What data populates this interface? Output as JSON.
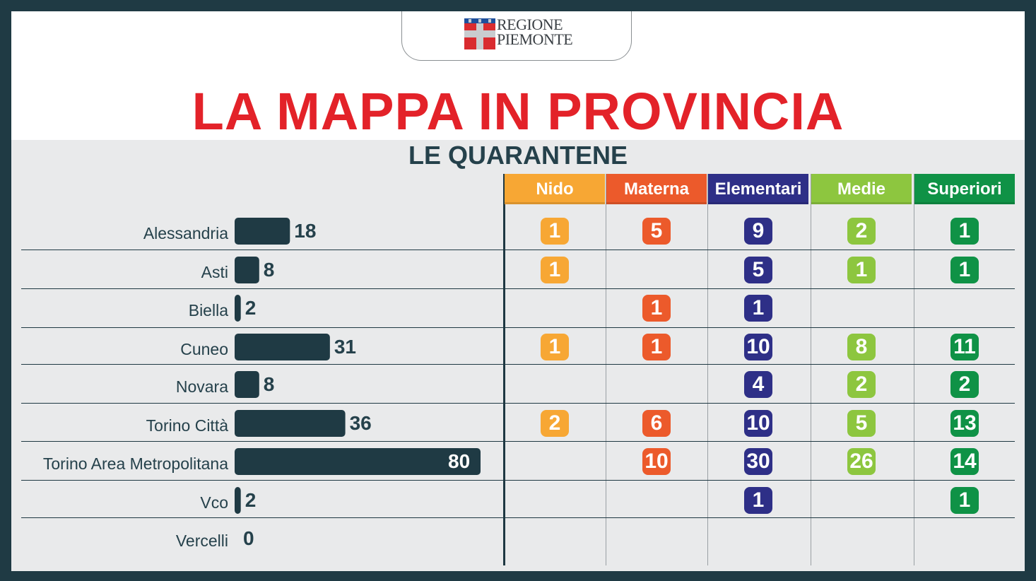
{
  "header": {
    "logo_line1": "REGIONE",
    "logo_line2": "PIEMONTE",
    "title": "LA MAPPA IN PROVINCIA",
    "subtitle": "LE QUARANTENE"
  },
  "colors": {
    "title": "#e32229",
    "bar": "#1f3a44",
    "nido": "#f7a734",
    "materna": "#ec5a2b",
    "elementari": "#2e2f87",
    "medie": "#8dc63f",
    "superiori": "#0f9246"
  },
  "icons": [
    "piemonte-crest-icon"
  ],
  "chart_data": {
    "type": "bar",
    "orientation": "horizontal",
    "title": "LA MAPPA IN PROVINCIA",
    "subtitle": "LE QUARANTENE",
    "categories": [
      "Alessandria",
      "Asti",
      "Biella",
      "Cuneo",
      "Novara",
      "Torino Città",
      "Torino Area Metropolitana",
      "Vco",
      "Vercelli"
    ],
    "values": [
      18,
      8,
      2,
      31,
      8,
      36,
      80,
      2,
      0
    ],
    "xlim": [
      0,
      80
    ],
    "grid": false,
    "table": {
      "columns": [
        "Nido",
        "Materna",
        "Elementari",
        "Medie",
        "Superiori"
      ],
      "rows": [
        [
          1,
          5,
          9,
          2,
          1
        ],
        [
          1,
          null,
          5,
          1,
          1
        ],
        [
          null,
          1,
          1,
          null,
          null
        ],
        [
          1,
          1,
          10,
          8,
          11
        ],
        [
          null,
          null,
          4,
          2,
          2
        ],
        [
          2,
          6,
          10,
          5,
          13
        ],
        [
          null,
          10,
          30,
          26,
          14
        ],
        [
          null,
          null,
          1,
          null,
          1
        ],
        [
          null,
          null,
          null,
          null,
          null
        ]
      ]
    }
  }
}
